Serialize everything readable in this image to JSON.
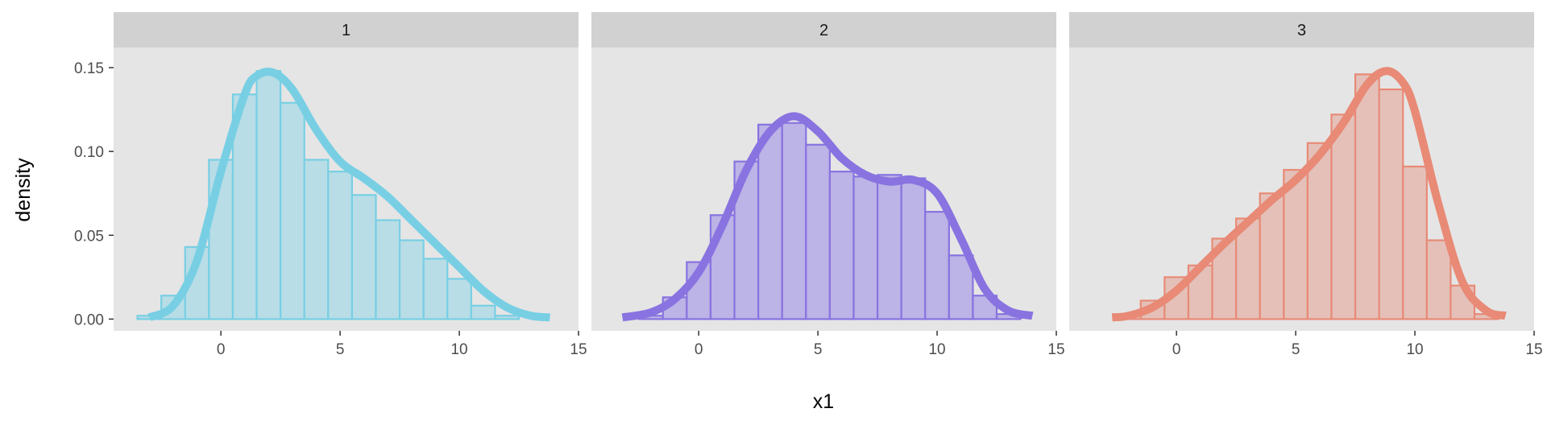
{
  "chart_data": {
    "type": "histogram-with-density",
    "xlabel": "x1",
    "ylabel": "density",
    "xlim": [
      -4.5,
      15
    ],
    "ylim": [
      -0.007,
      0.162
    ],
    "x_ticks": [
      0,
      5,
      10,
      15
    ],
    "y_ticks": [
      0.0,
      0.05,
      0.1,
      0.15
    ],
    "y_tick_labels": [
      "0.00",
      "0.05",
      "0.10",
      "0.15"
    ],
    "grid": false,
    "legend": "none",
    "bin_width": 1,
    "facets": [
      {
        "label": "1",
        "color": "#78cfe4",
        "fill": "#b8dde6",
        "bins": [
          {
            "x0": -3.5,
            "x1": -2.5,
            "density": 0.002
          },
          {
            "x0": -2.5,
            "x1": -1.5,
            "density": 0.014
          },
          {
            "x0": -1.5,
            "x1": -0.5,
            "density": 0.043
          },
          {
            "x0": -0.5,
            "x1": 0.5,
            "density": 0.095
          },
          {
            "x0": 0.5,
            "x1": 1.5,
            "density": 0.134
          },
          {
            "x0": 1.5,
            "x1": 2.5,
            "density": 0.148
          },
          {
            "x0": 2.5,
            "x1": 3.5,
            "density": 0.129
          },
          {
            "x0": 3.5,
            "x1": 4.5,
            "density": 0.095
          },
          {
            "x0": 4.5,
            "x1": 5.5,
            "density": 0.088
          },
          {
            "x0": 5.5,
            "x1": 6.5,
            "density": 0.074
          },
          {
            "x0": 6.5,
            "x1": 7.5,
            "density": 0.059
          },
          {
            "x0": 7.5,
            "x1": 8.5,
            "density": 0.047
          },
          {
            "x0": 8.5,
            "x1": 9.5,
            "density": 0.036
          },
          {
            "x0": 9.5,
            "x1": 10.5,
            "density": 0.024
          },
          {
            "x0": 10.5,
            "x1": 11.5,
            "density": 0.008
          },
          {
            "x0": 11.5,
            "x1": 12.5,
            "density": 0.002
          }
        ],
        "density_curve": {
          "x": [
            -3.0,
            -2.0,
            -1.0,
            0.0,
            1.0,
            1.5,
            2.2,
            3.0,
            4.0,
            5.0,
            6.0,
            7.0,
            8.0,
            9.0,
            10.0,
            11.0,
            12.0,
            13.0,
            13.8
          ],
          "y": [
            0.001,
            0.008,
            0.035,
            0.088,
            0.134,
            0.145,
            0.147,
            0.137,
            0.113,
            0.094,
            0.084,
            0.073,
            0.059,
            0.045,
            0.031,
            0.017,
            0.007,
            0.002,
            0.001
          ]
        }
      },
      {
        "label": "2",
        "color": "#8873e0",
        "fill": "#bcb3e6",
        "bins": [
          {
            "x0": -2.5,
            "x1": -1.5,
            "density": 0.002
          },
          {
            "x0": -1.5,
            "x1": -0.5,
            "density": 0.013
          },
          {
            "x0": -0.5,
            "x1": 0.5,
            "density": 0.034
          },
          {
            "x0": 0.5,
            "x1": 1.5,
            "density": 0.062
          },
          {
            "x0": 1.5,
            "x1": 2.5,
            "density": 0.094
          },
          {
            "x0": 2.5,
            "x1": 3.5,
            "density": 0.116
          },
          {
            "x0": 3.5,
            "x1": 4.5,
            "density": 0.117
          },
          {
            "x0": 4.5,
            "x1": 5.5,
            "density": 0.104
          },
          {
            "x0": 5.5,
            "x1": 6.5,
            "density": 0.088
          },
          {
            "x0": 6.5,
            "x1": 7.5,
            "density": 0.085
          },
          {
            "x0": 7.5,
            "x1": 8.5,
            "density": 0.086
          },
          {
            "x0": 8.5,
            "x1": 9.5,
            "density": 0.084
          },
          {
            "x0": 9.5,
            "x1": 10.5,
            "density": 0.064
          },
          {
            "x0": 10.5,
            "x1": 11.5,
            "density": 0.038
          },
          {
            "x0": 11.5,
            "x1": 12.5,
            "density": 0.014
          },
          {
            "x0": 12.5,
            "x1": 13.5,
            "density": 0.003
          }
        ],
        "density_curve": {
          "x": [
            -3.2,
            -2.0,
            -1.0,
            0.0,
            1.0,
            2.0,
            3.0,
            4.0,
            5.0,
            6.0,
            7.0,
            8.0,
            9.0,
            10.0,
            11.0,
            12.0,
            13.0,
            14.0
          ],
          "y": [
            0.001,
            0.004,
            0.012,
            0.028,
            0.056,
            0.089,
            0.112,
            0.121,
            0.112,
            0.096,
            0.086,
            0.082,
            0.083,
            0.075,
            0.048,
            0.018,
            0.005,
            0.002
          ]
        }
      },
      {
        "label": "3",
        "color": "#e88a76",
        "fill": "#e4c0b9",
        "bins": [
          {
            "x0": -2.5,
            "x1": -1.5,
            "density": 0.002
          },
          {
            "x0": -1.5,
            "x1": -0.5,
            "density": 0.011
          },
          {
            "x0": -0.5,
            "x1": 0.5,
            "density": 0.025
          },
          {
            "x0": 0.5,
            "x1": 1.5,
            "density": 0.032
          },
          {
            "x0": 1.5,
            "x1": 2.5,
            "density": 0.048
          },
          {
            "x0": 2.5,
            "x1": 3.5,
            "density": 0.06
          },
          {
            "x0": 3.5,
            "x1": 4.5,
            "density": 0.075
          },
          {
            "x0": 4.5,
            "x1": 5.5,
            "density": 0.089
          },
          {
            "x0": 5.5,
            "x1": 6.5,
            "density": 0.105
          },
          {
            "x0": 6.5,
            "x1": 7.5,
            "density": 0.122
          },
          {
            "x0": 7.5,
            "x1": 8.5,
            "density": 0.146
          },
          {
            "x0": 8.5,
            "x1": 9.5,
            "density": 0.137
          },
          {
            "x0": 9.5,
            "x1": 10.5,
            "density": 0.091
          },
          {
            "x0": 10.5,
            "x1": 11.5,
            "density": 0.047
          },
          {
            "x0": 11.5,
            "x1": 12.5,
            "density": 0.02
          },
          {
            "x0": 12.5,
            "x1": 13.5,
            "density": 0.003
          }
        ],
        "density_curve": {
          "x": [
            -2.7,
            -2.0,
            -1.0,
            0.0,
            1.0,
            2.0,
            3.0,
            4.0,
            5.0,
            6.0,
            7.0,
            8.0,
            8.8,
            9.5,
            10.0,
            11.0,
            12.0,
            13.0,
            13.8
          ],
          "y": [
            0.001,
            0.002,
            0.007,
            0.017,
            0.031,
            0.045,
            0.058,
            0.071,
            0.083,
            0.098,
            0.117,
            0.14,
            0.148,
            0.141,
            0.124,
            0.068,
            0.022,
            0.005,
            0.002
          ]
        }
      }
    ]
  }
}
